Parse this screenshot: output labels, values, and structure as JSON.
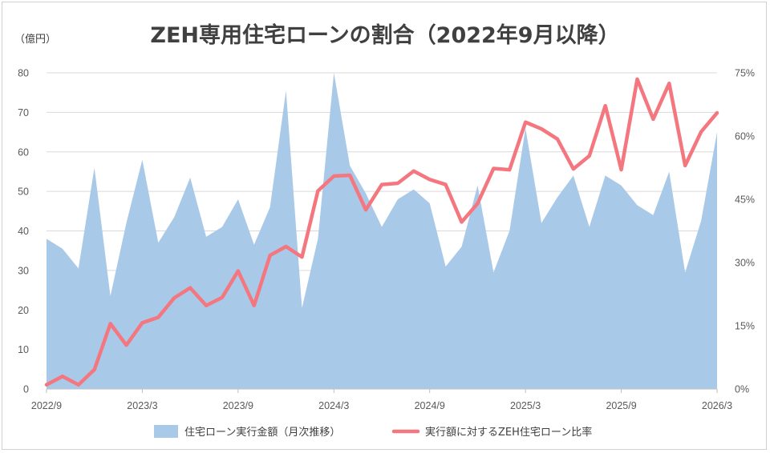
{
  "chart_data": {
    "type": "area+line",
    "title": "ZEH専用住宅ローンの割合（2022年9月以降）",
    "y_unit_label": "（億円）",
    "ylim_left": [
      0,
      80
    ],
    "yticks_left": [
      "0",
      "10",
      "20",
      "30",
      "40",
      "50",
      "60",
      "70",
      "80"
    ],
    "ylim_right": [
      0,
      0.75
    ],
    "yticks_right": [
      "0%",
      "15%",
      "30%",
      "45%",
      "60%",
      "75%"
    ],
    "xtick_labels": [
      {
        "index": 0,
        "label": "2022/9"
      },
      {
        "index": 6,
        "label": "2023/3"
      },
      {
        "index": 12,
        "label": "2023/9"
      },
      {
        "index": 18,
        "label": "2024/3"
      },
      {
        "index": 24,
        "label": "2024/9"
      },
      {
        "index": 30,
        "label": "2025/3"
      },
      {
        "index": 36,
        "label": "2025/9"
      },
      {
        "index": 42,
        "label": "2026/3"
      }
    ],
    "grid": "horizontal",
    "legend_position": "bottom",
    "x": [
      "2022/9",
      "2022/10",
      "2022/11",
      "2022/12",
      "2023/1",
      "2023/2",
      "2023/3",
      "2023/4",
      "2023/5",
      "2023/6",
      "2023/7",
      "2023/8",
      "2023/9",
      "2023/10",
      "2023/11",
      "2023/12",
      "2024/1",
      "2024/2",
      "2024/3",
      "2024/4",
      "2024/5",
      "2024/6",
      "2024/7",
      "2024/8",
      "2024/9",
      "2024/10",
      "2024/11",
      "2024/12",
      "2025/1",
      "2025/2",
      "2025/3",
      "2025/4",
      "2025/5",
      "2025/6",
      "2025/7",
      "2025/8",
      "2025/9",
      "2025/10",
      "2025/11",
      "2025/12",
      "2026/1",
      "2026/2",
      "2026/3"
    ],
    "series": [
      {
        "name": "住宅ローン実行金額（月次推移）",
        "type": "area",
        "axis": "left",
        "color": "#a9c9e9",
        "values": [
          38,
          35.5,
          30.5,
          56,
          23.5,
          42,
          58,
          37,
          43.5,
          53.5,
          38.5,
          41,
          48,
          36.5,
          46,
          75.5,
          20.5,
          38,
          80,
          56.5,
          49.5,
          41,
          48,
          50.5,
          47,
          31,
          36,
          51.5,
          29.5,
          40,
          66,
          42,
          48.5,
          54,
          41,
          54,
          51.5,
          46.5,
          44,
          55,
          29.5,
          42.5,
          65
        ]
      },
      {
        "name": "実行額に対するZEH住宅ローン比率",
        "type": "line",
        "axis": "right",
        "color": "#f4777f",
        "values": [
          0.01,
          0.03,
          0.01,
          0.046,
          0.155,
          0.104,
          0.157,
          0.17,
          0.216,
          0.24,
          0.198,
          0.217,
          0.28,
          0.198,
          0.317,
          0.338,
          0.313,
          0.47,
          0.505,
          0.507,
          0.425,
          0.485,
          0.488,
          0.517,
          0.497,
          0.485,
          0.396,
          0.44,
          0.523,
          0.52,
          0.633,
          0.617,
          0.593,
          0.522,
          0.553,
          0.672,
          0.52,
          0.735,
          0.64,
          0.725,
          0.53,
          0.61,
          0.655
        ]
      }
    ]
  }
}
